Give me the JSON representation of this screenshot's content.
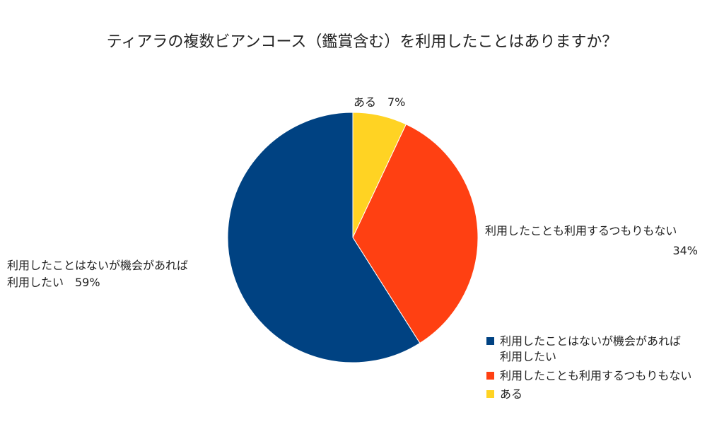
{
  "chart_data": {
    "type": "pie",
    "title": "ティアラの複数ビアンコース（鑑賞含む）を利用したことはありますか？",
    "start": "top",
    "direction": "clockwise",
    "slices": [
      {
        "name": "ある",
        "value": 7,
        "label_line1": "ある　7%",
        "label_line2": "",
        "color": "#FFD323"
      },
      {
        "name": "利用したことも利用するつもりもない",
        "value": 34,
        "label_line1": "利用したことも利用するつもりもない",
        "label_line2": "34%",
        "color": "#FF4012"
      },
      {
        "name": "利用したことはないが機会があれば利用したい",
        "value": 59,
        "label_line1": "利用したことはないが機会があれば",
        "label_line2": "利用したい　59%",
        "color": "#004282"
      }
    ],
    "legend": {
      "placement": "bottom-right",
      "entries": [
        {
          "line1": "利用したことはないが機会があれば",
          "line2": "利用したい",
          "color": "#004282"
        },
        {
          "line1": "利用したことも利用するつもりもない",
          "line2": "",
          "color": "#FF4012"
        },
        {
          "line1": "ある",
          "line2": "",
          "color": "#FFD323"
        }
      ]
    }
  }
}
